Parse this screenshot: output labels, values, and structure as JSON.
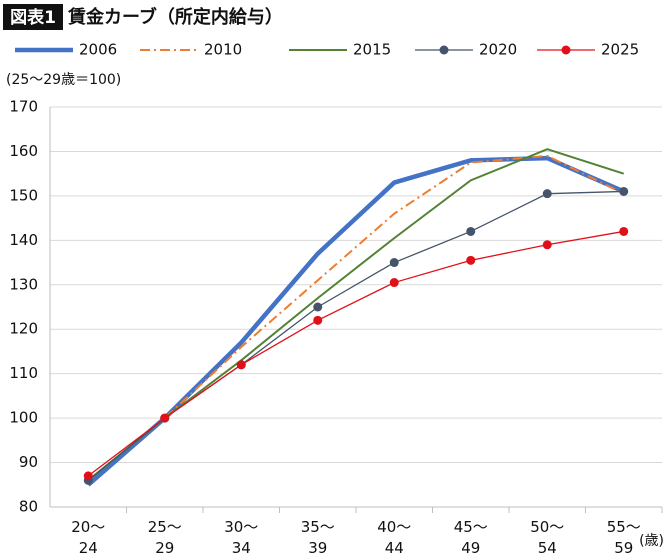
{
  "chart_data": {
    "type": "line",
    "label": "図表1",
    "title": "賃金カーブ（所定内給与）",
    "unit_note": "(25～29歳＝100)",
    "x_unit": "(歳)",
    "categories": [
      "20～\n24",
      "25～\n29",
      "30～\n34",
      "35～\n39",
      "40～\n44",
      "45～\n49",
      "50～\n54",
      "55～\n59"
    ],
    "series": [
      {
        "name": "2006",
        "color": "#4472c4",
        "line_width": 4.5,
        "dash": "solid",
        "marker": false,
        "values": [
          85,
          100,
          117,
          137,
          153,
          158,
          158.5,
          151
        ]
      },
      {
        "name": "2010",
        "color": "#ed7d31",
        "line_width": 2,
        "dash": "dashdot",
        "marker": false,
        "values": [
          86,
          100,
          116,
          131,
          146,
          157.5,
          159,
          150.5
        ]
      },
      {
        "name": "2015",
        "color": "#548235",
        "line_width": 2,
        "dash": "solid",
        "marker": false,
        "values": [
          86,
          100,
          113,
          127,
          140.5,
          153.5,
          160.5,
          155
        ]
      },
      {
        "name": "2020",
        "color": "#44546a",
        "line_width": 1.3,
        "dash": "solid",
        "marker": true,
        "values": [
          86,
          100,
          112,
          125,
          135,
          142,
          150.5,
          151
        ]
      },
      {
        "name": "2025",
        "color": "#e0101a",
        "line_width": 1.3,
        "dash": "solid",
        "marker": true,
        "values": [
          87,
          100,
          112,
          122,
          130.5,
          135.5,
          139,
          142
        ]
      }
    ],
    "ylim": [
      80,
      170
    ],
    "yticks": [
      80,
      90,
      100,
      110,
      120,
      130,
      140,
      150,
      160,
      170
    ],
    "grid": true
  }
}
